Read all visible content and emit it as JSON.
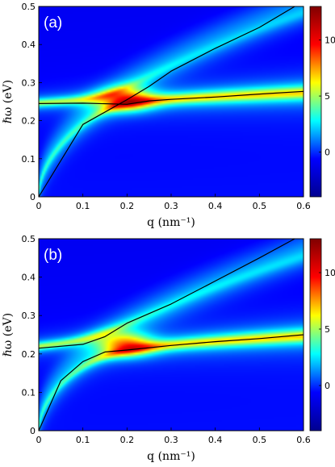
{
  "chart_data": [
    {
      "type": "heatmap",
      "panel_label": "(a)",
      "xlabel": "q (nm⁻¹)",
      "ylabel": "ℏω (eV)",
      "xlim": [
        0,
        0.6
      ],
      "ylim": [
        0,
        0.5
      ],
      "x_ticks": [
        "0",
        "0.1",
        "0.2",
        "0.3",
        "0.4",
        "0.5",
        "0.6"
      ],
      "y_ticks": [
        "0",
        "0.1",
        "0.2",
        "0.3",
        "0.4",
        "0.5"
      ],
      "colorbar_ticks": [
        "0",
        "5",
        "10"
      ],
      "colorbar_range": [
        -4,
        13
      ],
      "colormap": [
        "#00008f",
        "#0000ff",
        "#00ffff",
        "#ffff00",
        "#ff0000",
        "#800000"
      ],
      "phonon_energy": 0.245,
      "phonon_slope": 0.05,
      "plasmon_coeff": 0.62,
      "coupling": 0.018,
      "upper_branch": {
        "x": [
          0.0,
          0.1,
          0.2,
          0.25,
          0.3,
          0.4,
          0.5,
          0.58
        ],
        "y": [
          0.0,
          0.19,
          0.255,
          0.29,
          0.33,
          0.39,
          0.445,
          0.5
        ]
      },
      "lower_branch": {
        "x": [
          0.0,
          0.1,
          0.2,
          0.25,
          0.3,
          0.4,
          0.5,
          0.6
        ],
        "y": [
          0.245,
          0.246,
          0.243,
          0.252,
          0.256,
          0.262,
          0.27,
          0.277
        ]
      }
    },
    {
      "type": "heatmap",
      "panel_label": "(b)",
      "xlabel": "q (nm⁻¹)",
      "ylabel": "ℏω (eV)",
      "xlim": [
        0,
        0.6
      ],
      "ylim": [
        0,
        0.5
      ],
      "x_ticks": [
        "0",
        "0.1",
        "0.2",
        "0.3",
        "0.4",
        "0.5",
        "0.6"
      ],
      "y_ticks": [
        "0",
        "0.1",
        "0.2",
        "0.3",
        "0.4",
        "0.5"
      ],
      "colorbar_ticks": [
        "0",
        "5",
        "10"
      ],
      "colorbar_range": [
        -4,
        13
      ],
      "colormap": [
        "#00008f",
        "#0000ff",
        "#00ffff",
        "#ffff00",
        "#ff0000",
        "#800000"
      ],
      "phonon_energy": 0.215,
      "phonon_slope": 0.06,
      "plasmon_coeff": 0.58,
      "coupling": 0.03,
      "upper_branch": {
        "x": [
          0.0,
          0.1,
          0.15,
          0.2,
          0.3,
          0.4,
          0.5,
          0.58
        ],
        "y": [
          0.215,
          0.225,
          0.245,
          0.28,
          0.33,
          0.39,
          0.45,
          0.5
        ]
      },
      "lower_branch": {
        "x": [
          0.0,
          0.05,
          0.1,
          0.15,
          0.2,
          0.3,
          0.4,
          0.5,
          0.6
        ],
        "y": [
          0.0,
          0.13,
          0.18,
          0.205,
          0.21,
          0.222,
          0.232,
          0.24,
          0.25
        ]
      }
    }
  ]
}
